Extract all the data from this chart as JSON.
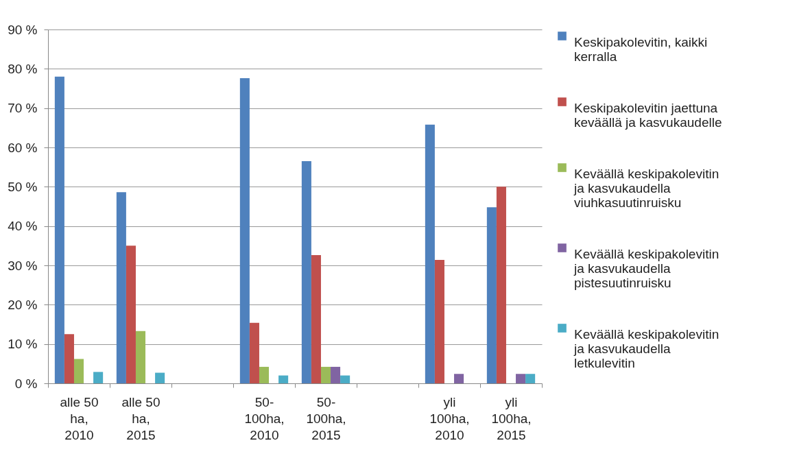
{
  "chart_data": {
    "type": "bar",
    "categories": [
      "alle 50 ha, 2010",
      "alle 50 ha, 2015",
      null,
      "50-100ha, 2010",
      "50-100ha, 2015",
      null,
      "yli 100ha, 2010",
      "yli 100ha, 2015"
    ],
    "series": [
      {
        "name": "Keskipakolevitin, kaikki kerralla",
        "color": "#4f81bd",
        "values": [
          78.0,
          48.6,
          null,
          77.6,
          56.5,
          null,
          65.8,
          44.8
        ]
      },
      {
        "name": "Keskipakolevitin jaettuna keväällä ja kasvukaudelle",
        "color": "#c0504d",
        "values": [
          12.5,
          35.0,
          null,
          15.4,
          32.6,
          null,
          31.4,
          50.0
        ]
      },
      {
        "name": "Keväällä keskipakolevitin ja kasvukaudella viuhkasuutinruisku",
        "color": "#9bbb59",
        "values": [
          6.2,
          13.3,
          null,
          4.2,
          4.2,
          null,
          null,
          null
        ]
      },
      {
        "name": "Keväällä keskipakolevitin ja kasvukaudella pistesuutinruisku",
        "color": "#8064a2",
        "values": [
          null,
          null,
          null,
          null,
          4.2,
          null,
          2.4,
          2.4
        ]
      },
      {
        "name": "Keväällä keskipakolevitin ja kasvukaudella letkulevitin",
        "color": "#4bacc6",
        "values": [
          2.9,
          2.7,
          null,
          2.0,
          2.0,
          null,
          null,
          2.4
        ]
      }
    ],
    "ylim": [
      0,
      90
    ],
    "yticks": [
      {
        "value": 0,
        "label": "0 %"
      },
      {
        "value": 10,
        "label": "10 %"
      },
      {
        "value": 20,
        "label": "20 %"
      },
      {
        "value": 30,
        "label": "30 %"
      },
      {
        "value": 40,
        "label": "40 %"
      },
      {
        "value": 50,
        "label": "50 %"
      },
      {
        "value": 60,
        "label": "60 %"
      },
      {
        "value": 70,
        "label": "70 %"
      },
      {
        "value": 80,
        "label": "80 %"
      },
      {
        "value": 90,
        "label": "90 %"
      }
    ],
    "grid": "y",
    "legend": "right"
  }
}
